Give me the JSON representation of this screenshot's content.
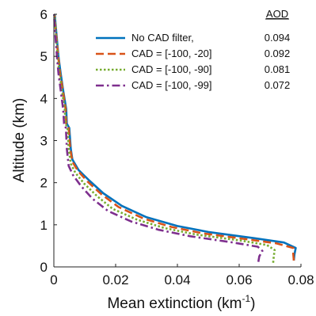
{
  "chart_data": {
    "type": "line",
    "xlabel": "Mean extinction (km",
    "xlabel_sup": "-1",
    "xlabel_close": ")",
    "ylabel": "Altitude (km)",
    "xlim": [
      0,
      0.08
    ],
    "ylim": [
      0,
      6
    ],
    "x_ticks": [
      "0",
      "0.02",
      "0.04",
      "0.06",
      "0.08"
    ],
    "y_ticks": [
      "0",
      "1",
      "2",
      "3",
      "4",
      "5",
      "6"
    ],
    "x_tick_values": [
      0,
      0.02,
      0.04,
      0.06,
      0.08
    ],
    "y_tick_values": [
      0,
      1,
      2,
      3,
      4,
      5,
      6
    ],
    "grid": false,
    "legend_position": "top-right",
    "aod_header": "AOD",
    "series": [
      {
        "name": "No CAD filter,",
        "aod": "0.094",
        "color": "#0072BD",
        "dash": "solid",
        "points": [
          [
            0.0777,
            0.15
          ],
          [
            0.0779,
            0.3
          ],
          [
            0.0783,
            0.45
          ],
          [
            0.0745,
            0.58
          ],
          [
            0.065,
            0.68
          ],
          [
            0.05,
            0.83
          ],
          [
            0.04,
            0.97
          ],
          [
            0.03,
            1.18
          ],
          [
            0.022,
            1.45
          ],
          [
            0.016,
            1.75
          ],
          [
            0.0115,
            2.05
          ],
          [
            0.008,
            2.3
          ],
          [
            0.006,
            2.55
          ],
          [
            0.0055,
            2.8
          ],
          [
            0.005,
            3.3
          ],
          [
            0.0042,
            3.4
          ],
          [
            0.004,
            3.75
          ],
          [
            0.003,
            4.2
          ],
          [
            0.0022,
            4.6
          ],
          [
            0.0015,
            5.0
          ],
          [
            0.001,
            5.4
          ],
          [
            0.0005,
            5.8
          ],
          [
            0.0003,
            6.0
          ]
        ]
      },
      {
        "name": "CAD = [-100, -20]",
        "aod": "0.092",
        "color": "#D95319",
        "dash": "dashed",
        "points": [
          [
            0.0777,
            0.15
          ],
          [
            0.0775,
            0.3
          ],
          [
            0.0775,
            0.45
          ],
          [
            0.072,
            0.56
          ],
          [
            0.063,
            0.65
          ],
          [
            0.048,
            0.8
          ],
          [
            0.038,
            0.95
          ],
          [
            0.029,
            1.15
          ],
          [
            0.021,
            1.42
          ],
          [
            0.0155,
            1.72
          ],
          [
            0.011,
            2.02
          ],
          [
            0.0078,
            2.28
          ],
          [
            0.006,
            2.5
          ],
          [
            0.0053,
            2.8
          ],
          [
            0.0048,
            3.3
          ],
          [
            0.004,
            3.4
          ],
          [
            0.0038,
            3.75
          ],
          [
            0.0029,
            4.2
          ],
          [
            0.002,
            4.6
          ],
          [
            0.0014,
            5.0
          ],
          [
            0.0009,
            5.4
          ],
          [
            0.0004,
            5.8
          ],
          [
            0.0002,
            6.0
          ]
        ]
      },
      {
        "name": "CAD = [-100, -90]",
        "aod": "0.081",
        "color": "#77AC30",
        "dash": "dotted",
        "points": [
          [
            0.071,
            0.1
          ],
          [
            0.0712,
            0.25
          ],
          [
            0.0715,
            0.4
          ],
          [
            0.069,
            0.52
          ],
          [
            0.061,
            0.62
          ],
          [
            0.046,
            0.77
          ],
          [
            0.036,
            0.92
          ],
          [
            0.027,
            1.12
          ],
          [
            0.019,
            1.38
          ],
          [
            0.014,
            1.68
          ],
          [
            0.0098,
            1.98
          ],
          [
            0.007,
            2.23
          ],
          [
            0.0055,
            2.45
          ],
          [
            0.0048,
            2.8
          ],
          [
            0.0044,
            3.3
          ],
          [
            0.0038,
            3.4
          ],
          [
            0.0035,
            3.75
          ],
          [
            0.0026,
            4.2
          ],
          [
            0.0018,
            4.6
          ],
          [
            0.0012,
            5.0
          ],
          [
            0.0008,
            5.4
          ],
          [
            0.0004,
            5.8
          ],
          [
            0.0002,
            6.0
          ]
        ]
      },
      {
        "name": "CAD = [-100, -99]",
        "aod": "0.072",
        "color": "#7E2F8E",
        "dash": "dashdot",
        "points": [
          [
            0.0662,
            0.12
          ],
          [
            0.0665,
            0.25
          ],
          [
            0.0675,
            0.38
          ],
          [
            0.066,
            0.48
          ],
          [
            0.058,
            0.58
          ],
          [
            0.044,
            0.73
          ],
          [
            0.034,
            0.88
          ],
          [
            0.025,
            1.08
          ],
          [
            0.0175,
            1.33
          ],
          [
            0.0125,
            1.62
          ],
          [
            0.0088,
            1.92
          ],
          [
            0.0062,
            2.18
          ],
          [
            0.0048,
            2.4
          ],
          [
            0.0042,
            2.8
          ],
          [
            0.0039,
            3.3
          ],
          [
            0.0033,
            3.4
          ],
          [
            0.003,
            3.75
          ],
          [
            0.0022,
            4.2
          ],
          [
            0.0015,
            4.6
          ],
          [
            0.001,
            5.0
          ],
          [
            0.0006,
            5.4
          ],
          [
            0.0002,
            5.8
          ],
          [
            0.0001,
            6.0
          ]
        ]
      }
    ]
  }
}
